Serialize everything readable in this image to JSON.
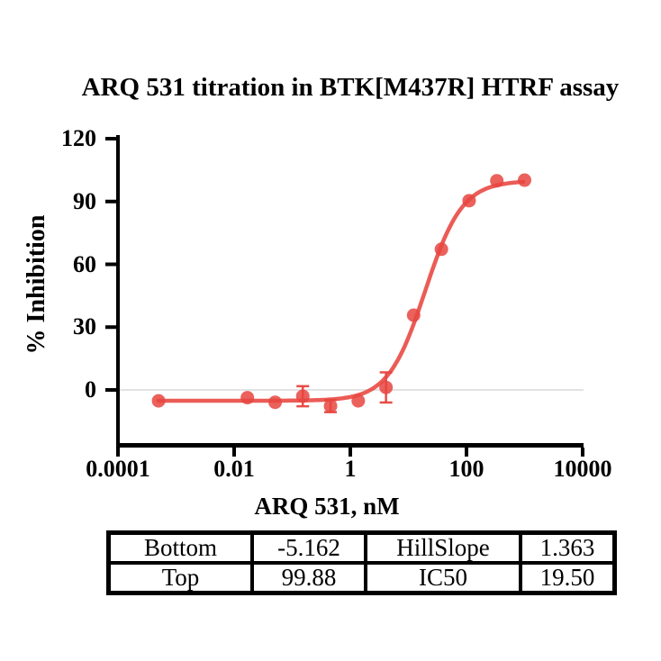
{
  "chart_data": {
    "type": "scatter",
    "title": "ARQ 531 titration in BTK[M437R] HTRF assay",
    "xlabel": "ARQ 531, nM",
    "ylabel": "% Inhibition",
    "x_scale": "log10",
    "xlim_log": [
      -4,
      4
    ],
    "ylim": [
      -26.5,
      121.5
    ],
    "grid": "horizontal-zero-line-only",
    "legend": "none",
    "x_ticks": [
      {
        "label": "0.0001",
        "log": -4
      },
      {
        "label": "0.01",
        "log": -2
      },
      {
        "label": "1",
        "log": 0
      },
      {
        "label": "100",
        "log": 2
      },
      {
        "label": "10000",
        "log": 4
      }
    ],
    "y_ticks": [
      {
        "label": "0",
        "value": 0
      },
      {
        "label": "30",
        "value": 30
      },
      {
        "label": "60",
        "value": 60
      },
      {
        "label": "90",
        "value": 90
      },
      {
        "label": "120",
        "value": 120
      }
    ],
    "series": [
      {
        "name": "ARQ 531",
        "marker_color": "#e8453f",
        "line_color": "#e8453f",
        "points": [
          {
            "x": 0.0005,
            "y": -5.2,
            "err": 0
          },
          {
            "x": 0.0169,
            "y": -3.7,
            "err": 0
          },
          {
            "x": 0.0508,
            "y": -5.9,
            "err": 0
          },
          {
            "x": 0.152,
            "y": -3.0,
            "err": 4.8
          },
          {
            "x": 0.457,
            "y": -7.7,
            "err": 2.9
          },
          {
            "x": 1.37,
            "y": -5.2,
            "err": 0
          },
          {
            "x": 4.12,
            "y": 1.2,
            "err": 7.2
          },
          {
            "x": 12.3,
            "y": 35.7,
            "err": 0
          },
          {
            "x": 37,
            "y": 67.2,
            "err": 0
          },
          {
            "x": 111,
            "y": 90.4,
            "err": 0
          },
          {
            "x": 333,
            "y": 99.9,
            "err": 0
          },
          {
            "x": 1000,
            "y": 100.2,
            "err": 0
          }
        ],
        "fit": {
          "model": "4PL",
          "bottom": -5.162,
          "top": 99.88,
          "hillslope": 1.363,
          "ic50": 19.5,
          "log_x_start": -3.301,
          "log_x_end": 3.0
        }
      }
    ],
    "zero_line_color": "#d9d9d9",
    "axis_color": "#000000"
  },
  "results_table": {
    "rows": [
      [
        "Bottom",
        "-5.162",
        "HillSlope",
        "1.363"
      ],
      [
        "Top",
        "99.88",
        "IC50",
        "19.50"
      ]
    ]
  }
}
